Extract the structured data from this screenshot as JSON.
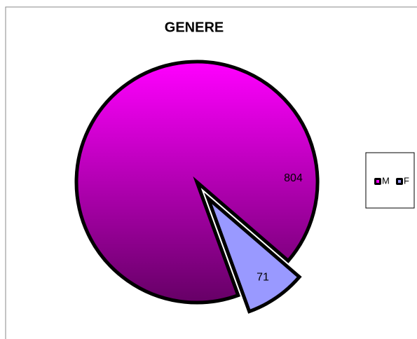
{
  "chart_data": {
    "type": "pie",
    "title": "GENERE",
    "categories": [
      "M",
      "F"
    ],
    "values": [
      804,
      71
    ],
    "colors": [
      "#ff00ff",
      "#9999ff"
    ],
    "exploded": [
      false,
      true
    ],
    "legend": "right"
  }
}
